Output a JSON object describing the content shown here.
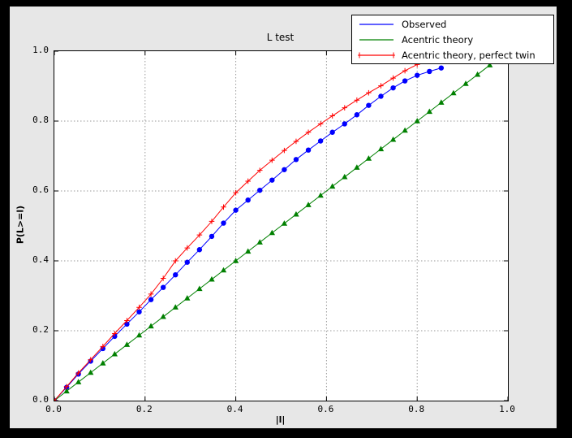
{
  "window": {
    "frame_color": "#000000",
    "figure_bg": "#e7e7e7",
    "plot_bg": "#ffffff",
    "grid_color": "#999999",
    "axis_color": "#000000"
  },
  "chart_data": {
    "type": "line",
    "title": "L test",
    "xlabel": "|l|",
    "ylabel": "P(L>=l)",
    "xlim": [
      0.0,
      1.0
    ],
    "ylim": [
      0.0,
      1.0
    ],
    "xticks": [
      "0.0",
      "0.2",
      "0.4",
      "0.6",
      "0.8",
      "1.0"
    ],
    "yticks": [
      "0.0",
      "0.2",
      "0.4",
      "0.6",
      "0.8",
      "1.0"
    ],
    "tick_values": [
      0.0,
      0.2,
      0.4,
      0.6,
      0.8,
      1.0
    ],
    "grid": true,
    "grid_style": "dashed",
    "legend_position": "upper right",
    "series": [
      {
        "name": "Observed",
        "color": "#0000ff",
        "marker": "circle",
        "x": [
          0.0,
          0.027,
          0.053,
          0.08,
          0.107,
          0.133,
          0.16,
          0.187,
          0.213,
          0.24,
          0.267,
          0.293,
          0.32,
          0.347,
          0.373,
          0.4,
          0.427,
          0.453,
          0.48,
          0.507,
          0.533,
          0.56,
          0.587,
          0.613,
          0.64,
          0.667,
          0.693,
          0.72,
          0.747,
          0.773,
          0.8,
          0.827,
          0.853
        ],
        "y": [
          0.0,
          0.038,
          0.076,
          0.113,
          0.149,
          0.184,
          0.219,
          0.254,
          0.289,
          0.324,
          0.36,
          0.396,
          0.432,
          0.47,
          0.508,
          0.545,
          0.574,
          0.602,
          0.631,
          0.661,
          0.69,
          0.717,
          0.743,
          0.768,
          0.792,
          0.818,
          0.845,
          0.871,
          0.895,
          0.915,
          0.931,
          0.942,
          0.952
        ]
      },
      {
        "name": "Acentric theory",
        "color": "#008000",
        "marker": "triangle",
        "x": [
          0.0,
          0.027,
          0.053,
          0.08,
          0.107,
          0.133,
          0.16,
          0.187,
          0.213,
          0.24,
          0.267,
          0.293,
          0.32,
          0.347,
          0.373,
          0.4,
          0.427,
          0.453,
          0.48,
          0.507,
          0.533,
          0.56,
          0.587,
          0.613,
          0.64,
          0.667,
          0.693,
          0.72,
          0.747,
          0.773,
          0.8,
          0.827,
          0.853,
          0.88,
          0.907,
          0.933,
          0.96
        ],
        "y": [
          0.0,
          0.027,
          0.053,
          0.08,
          0.107,
          0.133,
          0.16,
          0.187,
          0.213,
          0.24,
          0.267,
          0.293,
          0.32,
          0.347,
          0.373,
          0.4,
          0.427,
          0.453,
          0.48,
          0.507,
          0.533,
          0.56,
          0.587,
          0.613,
          0.64,
          0.667,
          0.693,
          0.72,
          0.747,
          0.773,
          0.8,
          0.827,
          0.853,
          0.88,
          0.907,
          0.933,
          0.96
        ]
      },
      {
        "name": "Acentric theory, perfect twin",
        "color": "#ff0000",
        "marker": "plus",
        "x": [
          0.0,
          0.027,
          0.053,
          0.08,
          0.107,
          0.133,
          0.16,
          0.187,
          0.213,
          0.24,
          0.267,
          0.293,
          0.32,
          0.347,
          0.373,
          0.4,
          0.427,
          0.453,
          0.48,
          0.507,
          0.533,
          0.56,
          0.587,
          0.613,
          0.64,
          0.667,
          0.693,
          0.72,
          0.747,
          0.773,
          0.8,
          0.827,
          0.853
        ],
        "y": [
          0.0,
          0.04,
          0.079,
          0.117,
          0.155,
          0.192,
          0.229,
          0.267,
          0.305,
          0.35,
          0.4,
          0.437,
          0.474,
          0.513,
          0.554,
          0.595,
          0.628,
          0.659,
          0.688,
          0.716,
          0.742,
          0.768,
          0.792,
          0.815,
          0.838,
          0.86,
          0.881,
          0.901,
          0.923,
          0.944,
          0.962,
          0.976,
          0.986
        ]
      }
    ]
  }
}
